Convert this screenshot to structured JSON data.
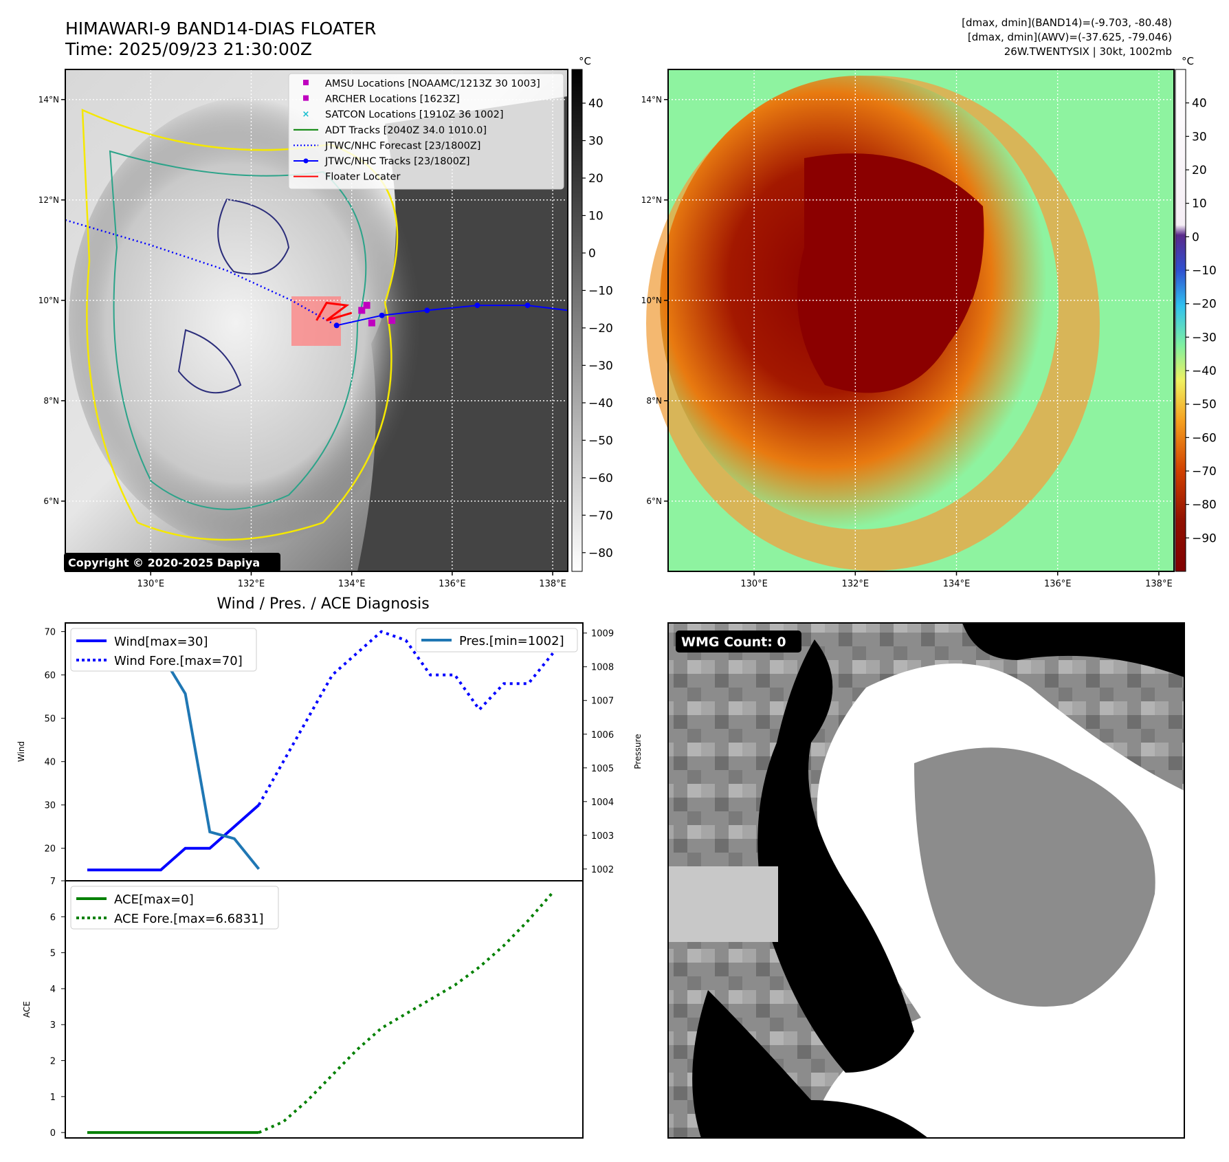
{
  "header": {
    "title_line1": "HIMAWARI-9 BAND14-DIAS FLOATER",
    "title_line2": "Time: 2025/09/23 21:30:00Z",
    "info_line1": "[dmax, dmin](BAND14)=(-9.703, -80.48)",
    "info_line2": "[dmax, dmin](AWV)=(-37.625, -79.046)",
    "info_line3": "26W.TWENTYSIX | 30kt, 1002mb"
  },
  "map_axes": {
    "lat_ticks": [
      "14°N",
      "12°N",
      "10°N",
      "8°N",
      "6°N"
    ],
    "lat_values": [
      14,
      12,
      10,
      8,
      6
    ],
    "lon_ticks": [
      "130°E",
      "132°E",
      "134°E",
      "136°E",
      "138°E"
    ],
    "lon_values": [
      130,
      132,
      134,
      136,
      138
    ],
    "lat_range": [
      4.6,
      14.6
    ],
    "lon_range": [
      128.3,
      138.3
    ]
  },
  "ir_panel": {
    "colorbar_unit": "°C",
    "colorbar_ticks": [
      "40",
      "30",
      "20",
      "10",
      "0",
      "−10",
      "−20",
      "−30",
      "−40",
      "−50",
      "−60",
      "−70",
      "−80"
    ],
    "colorbar_values": [
      40,
      30,
      20,
      10,
      0,
      -10,
      -20,
      -30,
      -40,
      -50,
      -60,
      -70,
      -80
    ],
    "colorbar_range": [
      -85,
      49
    ],
    "legend": [
      {
        "label": "AMSU Locations [NOAAMC/1213Z 30 1003]",
        "marker": "square",
        "color": "#bf00bf"
      },
      {
        "label": "ARCHER Locations [1623Z]",
        "marker": "square",
        "color": "#bf00bf"
      },
      {
        "label": "SATCON Locations [1910Z 36 1002]",
        "marker": "x",
        "color": "#17becf"
      },
      {
        "label": "ADT Tracks [2040Z 34.0 1010.0]",
        "marker": "line",
        "color": "#008000"
      },
      {
        "label": "JTWC/NHC Forecast [23/1800Z]",
        "marker": "dotted",
        "color": "#0000ff"
      },
      {
        "label": "JTWC/NHC Tracks [23/1800Z]",
        "marker": "line-dot",
        "color": "#0000ff"
      },
      {
        "label": "Floater Locater",
        "marker": "line",
        "color": "#ff0000"
      }
    ],
    "copyright": "Copyright © 2020-2025 Dapiya"
  },
  "awv_panel": {
    "colorbar_unit": "°C",
    "colorbar_ticks": [
      "40",
      "30",
      "20",
      "10",
      "0",
      "−10",
      "−20",
      "−30",
      "−40",
      "−50",
      "−60",
      "−70",
      "−80",
      "−90"
    ],
    "colorbar_values": [
      40,
      30,
      20,
      10,
      0,
      -10,
      -20,
      -30,
      -40,
      -50,
      -60,
      -70,
      -80,
      -90
    ],
    "colorbar_range": [
      -100,
      50
    ]
  },
  "wmg_panel": {
    "label": "WMG Count: 0"
  },
  "chart_data": [
    {
      "type": "line",
      "title": "Wind / Pres. / ACE Diagnosis",
      "ylabel": "Wind",
      "y2label": "Pressure",
      "ylim": [
        12.5,
        72
      ],
      "y2lim": [
        1001.65,
        1009.3
      ],
      "yticks": [
        20,
        30,
        40,
        50,
        60,
        70
      ],
      "y2ticks": [
        1002,
        1003,
        1004,
        1005,
        1006,
        1007,
        1008,
        1009
      ],
      "xlim": [
        0,
        20
      ],
      "legend_left": "upper left",
      "legend_right": "upper right",
      "series": [
        {
          "name": "Wind[max=30]",
          "color": "#0000ff",
          "style": "solid",
          "x": [
            0,
            1,
            2,
            3,
            4,
            5,
            6,
            7
          ],
          "y": [
            15,
            15,
            15,
            15,
            20,
            20,
            25,
            30
          ]
        },
        {
          "name": "Wind Fore.[max=70]",
          "color": "#0000ff",
          "style": "dotted",
          "x": [
            7,
            8,
            9,
            10,
            11,
            12,
            13,
            14,
            15,
            16,
            17,
            18,
            19
          ],
          "y": [
            30,
            40,
            50,
            60,
            65,
            70,
            68,
            60,
            60,
            52,
            58,
            58,
            65
          ]
        },
        {
          "name": "Pres.[min=1002]",
          "color": "#1f77b4",
          "style": "solid",
          "axis": "right",
          "x": [
            0,
            1,
            2,
            3,
            4,
            5,
            6,
            7
          ],
          "y": [
            1009,
            1008.4,
            1008.4,
            1008.4,
            1007.2,
            1003.1,
            1002.9,
            1002
          ]
        }
      ]
    },
    {
      "type": "line",
      "ylabel": "ACE",
      "ylim": [
        -0.15,
        7
      ],
      "yticks": [
        0,
        1,
        2,
        3,
        4,
        5,
        6,
        7
      ],
      "xlim": [
        0,
        20
      ],
      "legend": "upper left",
      "series": [
        {
          "name": "ACE[max=0]",
          "color": "#008000",
          "style": "solid",
          "x": [
            0,
            1,
            2,
            3,
            4,
            5,
            6,
            7
          ],
          "y": [
            0,
            0,
            0,
            0,
            0,
            0,
            0,
            0
          ]
        },
        {
          "name": "ACE Fore.[max=6.6831]",
          "color": "#008000",
          "style": "dotted",
          "x": [
            7,
            8,
            9,
            10,
            11,
            12,
            13,
            14,
            15,
            16,
            17,
            18,
            19
          ],
          "y": [
            0,
            0.3,
            0.9,
            1.6,
            2.3,
            2.9,
            3.3,
            3.7,
            4.1,
            4.6,
            5.2,
            5.9,
            6.68
          ]
        }
      ]
    }
  ]
}
